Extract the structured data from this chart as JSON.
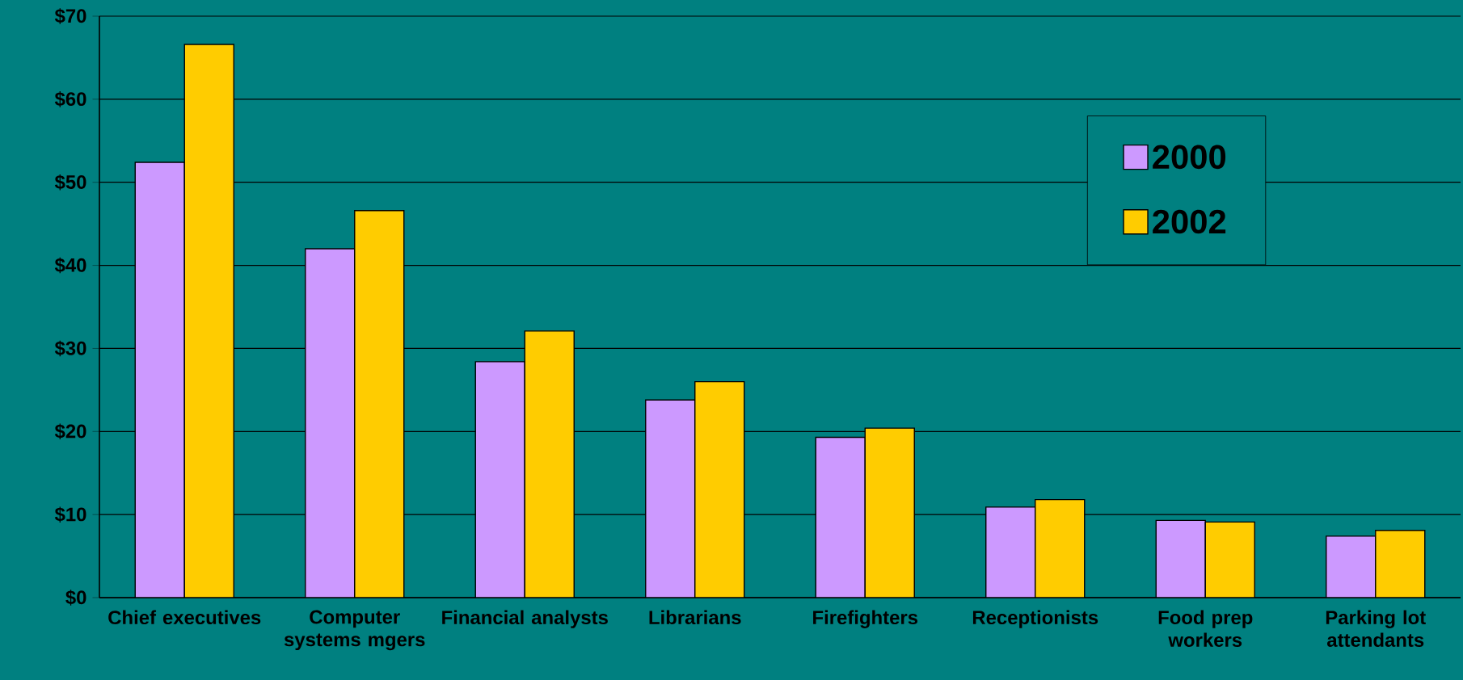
{
  "chart_data": {
    "type": "bar",
    "categories": [
      "Chief executives",
      "Computer systems mgers",
      "Financial analysts",
      "Librarians",
      "Firefighters",
      "Receptionists",
      "Food prep workers",
      "Parking lot attendants"
    ],
    "series": [
      {
        "name": "2000",
        "color": "#cc99ff",
        "values": [
          52.4,
          42.0,
          28.4,
          23.8,
          19.3,
          10.9,
          9.3,
          7.4
        ]
      },
      {
        "name": "2002",
        "color": "#ffcc00",
        "values": [
          66.6,
          46.6,
          32.1,
          26.0,
          20.4,
          11.8,
          9.1,
          8.1
        ]
      }
    ],
    "ylim": [
      0,
      70
    ],
    "yticks": [
      {
        "value": 0,
        "label": "$0"
      },
      {
        "value": 10,
        "label": "$10"
      },
      {
        "value": 20,
        "label": "$20"
      },
      {
        "value": 30,
        "label": "$30"
      },
      {
        "value": 40,
        "label": "$40"
      },
      {
        "value": 50,
        "label": "$50"
      },
      {
        "value": 60,
        "label": "$60"
      },
      {
        "value": 70,
        "label": "$70"
      }
    ],
    "grid": "y",
    "legend": "top right"
  }
}
